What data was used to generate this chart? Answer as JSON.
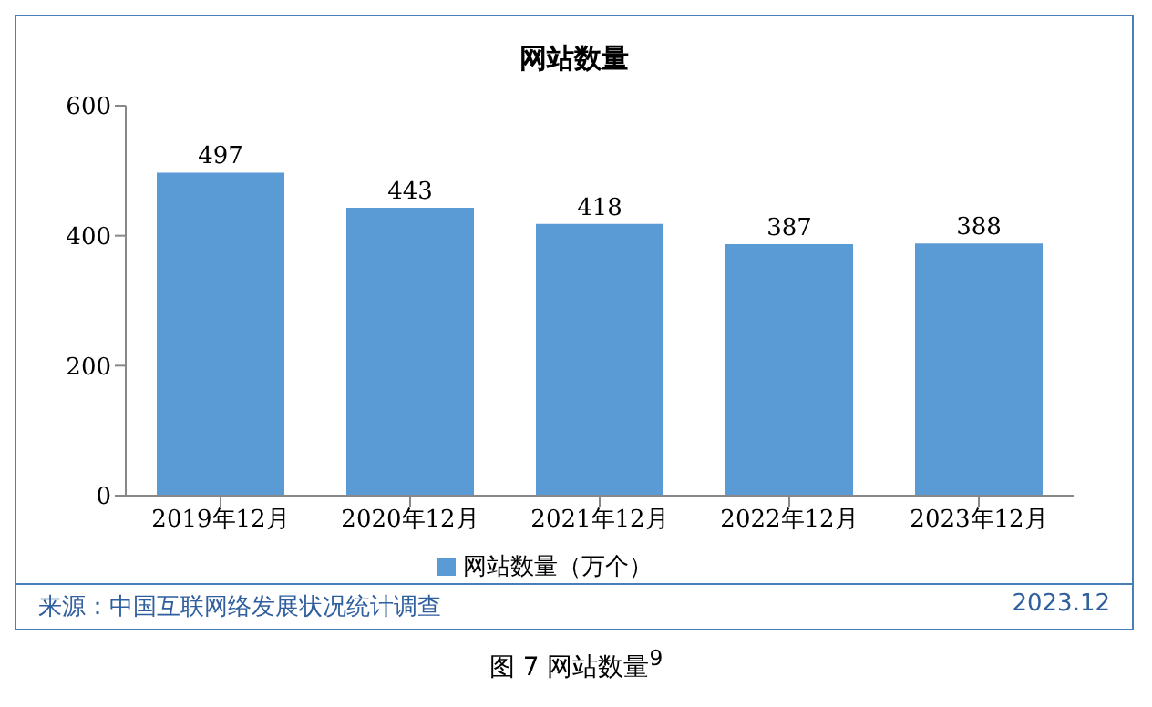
{
  "chart_data": {
    "type": "bar",
    "title": "网站数量",
    "categories": [
      "2019年12月",
      "2020年12月",
      "2021年12月",
      "2022年12月",
      "2023年12月"
    ],
    "series": [
      {
        "name": "网站数量（万个）",
        "color": "#5b9bd5",
        "values": [
          497,
          443,
          418,
          387,
          388
        ]
      }
    ],
    "ylim": [
      0,
      600
    ],
    "yticks": [
      0,
      200,
      400,
      600
    ],
    "grid": false,
    "legend": "bottom",
    "data_labels": true,
    "annotations": [
      "来源：中国互联网络发展状况统计调查",
      "2023.12",
      "图 7 网站数量$^{9}$"
    ]
  }
}
